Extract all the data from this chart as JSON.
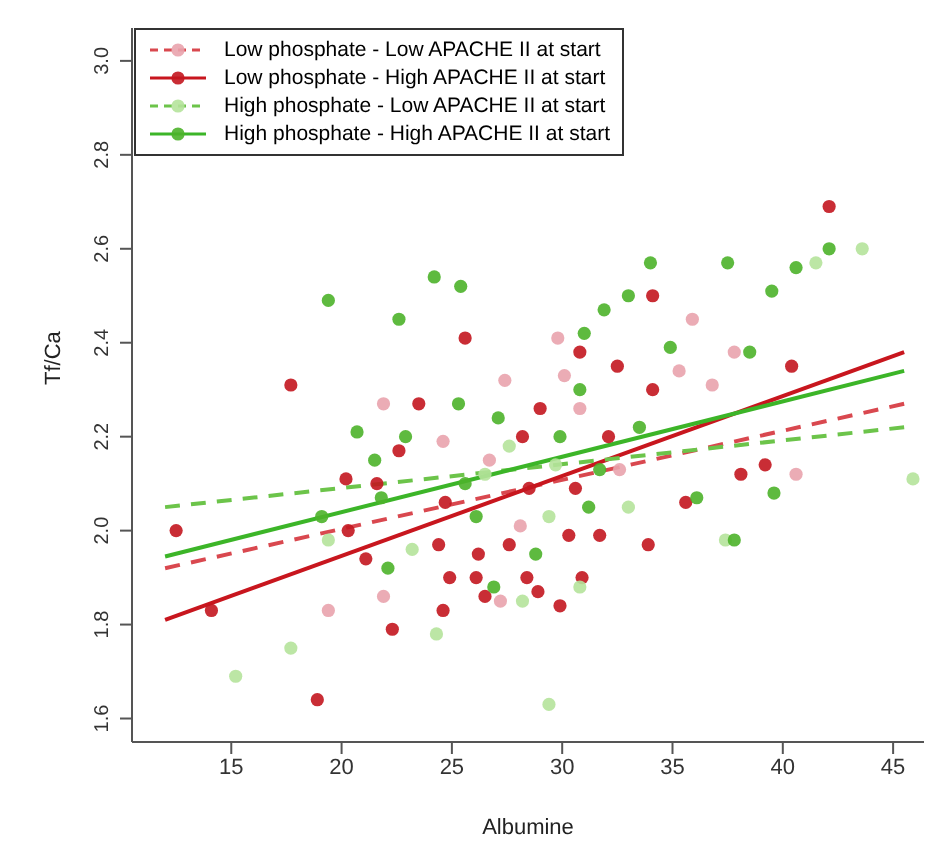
{
  "chart_data": {
    "type": "scatter",
    "xlabel": "Albumine",
    "ylabel": "Tf/Ca",
    "xlim": [
      10.5,
      46.4
    ],
    "ylim": [
      1.55,
      3.07
    ],
    "xticks": [
      15,
      20,
      25,
      30,
      35,
      40,
      45
    ],
    "yticks": [
      1.6,
      1.8,
      {
        "value": 2,
        "label": "2.0"
      },
      2.2,
      2.4,
      2.6,
      2.8,
      {
        "value": 3,
        "label": "3.0"
      }
    ],
    "grid": false,
    "legend": "top left",
    "series": [
      {
        "name": "Low phosphate - Low APACHE II at start",
        "color": "#e9a3ad",
        "marker": "circle",
        "x": [
          19.4,
          21.9,
          27.4,
          24.6,
          30.8,
          30.1,
          26.7,
          28.1,
          32.6,
          35.3,
          36.8,
          37.8,
          35.9,
          27.2,
          29.8,
          21.9,
          40.6
        ],
        "values": [
          1.83,
          1.86,
          2.32,
          2.19,
          2.26,
          2.33,
          2.15,
          2.01,
          2.13,
          2.34,
          2.31,
          2.38,
          2.45,
          1.85,
          2.41,
          2.27,
          2.12
        ]
      },
      {
        "name": "Low phosphate - High APACHE II at start",
        "color": "#c3161f",
        "marker": "circle",
        "x": [
          42.1,
          25.6,
          17.7,
          12.5,
          14.1,
          18.9,
          22.3,
          34.1,
          40.4,
          39.2,
          38.1,
          35.6,
          33.9,
          30.8,
          32.5,
          34.1,
          23.5,
          22.6,
          20.2,
          21.6,
          20.3,
          21.1,
          24.7,
          24.4,
          24.9,
          26.2,
          24.6,
          26.1,
          26.5,
          28.4,
          28.9,
          29.9,
          30.9,
          29.0,
          28.5,
          30.3,
          32.1,
          31.7,
          28.2,
          30.6,
          27.6
        ],
        "values": [
          2.69,
          2.41,
          2.31,
          2.0,
          1.83,
          1.64,
          1.79,
          2.5,
          2.35,
          2.14,
          2.12,
          2.06,
          1.97,
          2.38,
          2.35,
          2.3,
          2.27,
          2.17,
          2.11,
          2.1,
          2.0,
          1.94,
          2.06,
          1.97,
          1.9,
          1.95,
          1.83,
          1.9,
          1.86,
          1.9,
          1.87,
          1.84,
          1.9,
          2.26,
          2.09,
          1.99,
          2.2,
          1.99,
          2.2,
          2.09,
          1.97
        ]
      },
      {
        "name": "High phosphate - Low APACHE II at start",
        "color": "#b5e39b",
        "marker": "circle",
        "x": [
          43.6,
          41.5,
          45.9,
          15.2,
          17.7,
          24.3,
          29.4,
          37.4,
          26.5,
          23.2,
          19.4,
          28.2,
          30.8,
          29.4,
          27.6,
          33.0,
          29.7
        ],
        "values": [
          2.6,
          2.57,
          2.11,
          1.69,
          1.75,
          1.78,
          1.63,
          1.98,
          2.12,
          1.96,
          1.98,
          1.85,
          1.88,
          2.03,
          2.18,
          2.05,
          2.14
        ]
      },
      {
        "name": "High phosphate - High APACHE II at start",
        "color": "#4cb22a",
        "marker": "circle",
        "x": [
          42.1,
          40.6,
          24.2,
          25.4,
          19.4,
          22.6,
          34.0,
          37.5,
          39.5,
          39.6,
          37.8,
          33.0,
          31.9,
          31.0,
          34.9,
          38.5,
          20.7,
          22.9,
          21.5,
          21.8,
          22.1,
          25.6,
          26.9,
          29.9,
          31.7,
          31.2,
          33.5,
          27.1,
          30.8,
          26.1,
          28.8,
          25.3,
          19.1,
          36.1
        ],
        "values": [
          2.6,
          2.56,
          2.54,
          2.52,
          2.49,
          2.45,
          2.57,
          2.57,
          2.51,
          2.08,
          1.98,
          2.5,
          2.47,
          2.42,
          2.39,
          2.38,
          2.21,
          2.2,
          2.15,
          2.07,
          1.92,
          2.1,
          1.88,
          2.2,
          2.13,
          2.05,
          2.22,
          2.24,
          2.3,
          2.03,
          1.95,
          2.27,
          2.03,
          2.07
        ]
      },
      {
        "type": "line",
        "color": "#d9484f",
        "line_style": "dashed",
        "marker": "none",
        "x": [
          12,
          45.5
        ],
        "values": [
          1.92,
          2.27
        ]
      },
      {
        "type": "line",
        "color": "#c8161e",
        "line_style": "solid",
        "marker": "none",
        "x": [
          12,
          45.5
        ],
        "values": [
          1.81,
          2.38
        ]
      },
      {
        "type": "line",
        "color": "#6cc44a",
        "line_style": "dashed",
        "marker": "none",
        "x": [
          12,
          45.5
        ],
        "values": [
          2.05,
          2.22
        ]
      },
      {
        "type": "line",
        "color": "#3cb528",
        "line_style": "solid",
        "marker": "none",
        "x": [
          12,
          45.5
        ],
        "values": [
          1.945,
          2.34
        ]
      }
    ]
  }
}
